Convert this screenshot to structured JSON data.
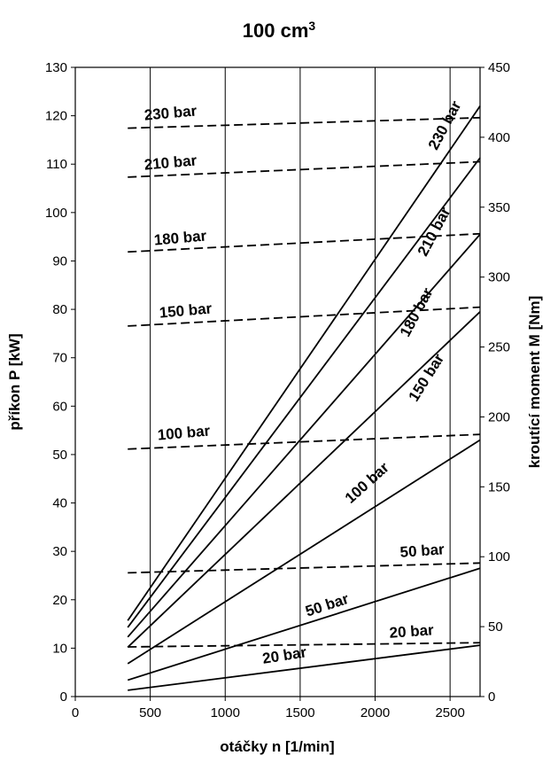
{
  "chart_data": {
    "type": "line",
    "title": "100 cm",
    "title_superscript": "3",
    "xlabel": "otáčky n [1/min]",
    "ylabel": "příkon P [kW]",
    "y2label": "kroutící moment M [Nm]",
    "xlim": [
      0,
      2700
    ],
    "ylim": [
      0,
      130
    ],
    "y2lim": [
      0,
      450
    ],
    "xticks": [
      "0",
      "500",
      "1000",
      "1500",
      "2000",
      "2500"
    ],
    "yticks": [
      "0",
      "10",
      "20",
      "30",
      "40",
      "50",
      "60",
      "70",
      "80",
      "90",
      "100",
      "110",
      "120",
      "130"
    ],
    "y2ticks": [
      "0",
      "50",
      "100",
      "150",
      "200",
      "250",
      "300",
      "350",
      "400",
      "450"
    ],
    "grid": "vertical",
    "power_series": [
      {
        "name": "20 bar",
        "axis": "left",
        "style": "solid",
        "x": [
          350,
          2700
        ],
        "y": [
          1.3,
          10.6
        ]
      },
      {
        "name": "50 bar",
        "axis": "left",
        "style": "solid",
        "x": [
          350,
          2700
        ],
        "y": [
          3.4,
          26.5
        ]
      },
      {
        "name": "100 bar",
        "axis": "left",
        "style": "solid",
        "x": [
          350,
          2700
        ],
        "y": [
          6.8,
          53.0
        ]
      },
      {
        "name": "150 bar",
        "axis": "left",
        "style": "solid",
        "x": [
          350,
          2700
        ],
        "y": [
          10.2,
          79.5
        ]
      },
      {
        "name": "180 bar",
        "axis": "left",
        "style": "solid",
        "x": [
          350,
          2700
        ],
        "y": [
          12.3,
          95.5
        ]
      },
      {
        "name": "210 bar",
        "axis": "left",
        "style": "solid",
        "x": [
          350,
          2700
        ],
        "y": [
          14.3,
          111.3
        ]
      },
      {
        "name": "230 bar",
        "axis": "left",
        "style": "solid",
        "x": [
          350,
          2700
        ],
        "y": [
          15.7,
          122.0
        ]
      }
    ],
    "torque_series": [
      {
        "name": "20 bar",
        "axis": "right",
        "style": "dashed",
        "x": [
          350,
          2700
        ],
        "y": [
          35.5,
          38.5
        ]
      },
      {
        "name": "50 bar",
        "axis": "right",
        "style": "dashed",
        "x": [
          350,
          2700
        ],
        "y": [
          88.5,
          95.5
        ]
      },
      {
        "name": "100 bar",
        "axis": "right",
        "style": "dashed",
        "x": [
          350,
          2700
        ],
        "y": [
          177.0,
          187.5
        ]
      },
      {
        "name": "150 bar",
        "axis": "right",
        "style": "dashed",
        "x": [
          350,
          2700
        ],
        "y": [
          265.0,
          278.5
        ]
      },
      {
        "name": "180 bar",
        "axis": "right",
        "style": "dashed",
        "x": [
          350,
          2700
        ],
        "y": [
          318.0,
          331.0
        ]
      },
      {
        "name": "210 bar",
        "axis": "right",
        "style": "dashed",
        "x": [
          350,
          2700
        ],
        "y": [
          371.5,
          382.5
        ]
      },
      {
        "name": "230 bar",
        "axis": "right",
        "style": "dashed",
        "x": [
          350,
          2700
        ],
        "y": [
          406.5,
          414.0
        ]
      }
    ]
  }
}
